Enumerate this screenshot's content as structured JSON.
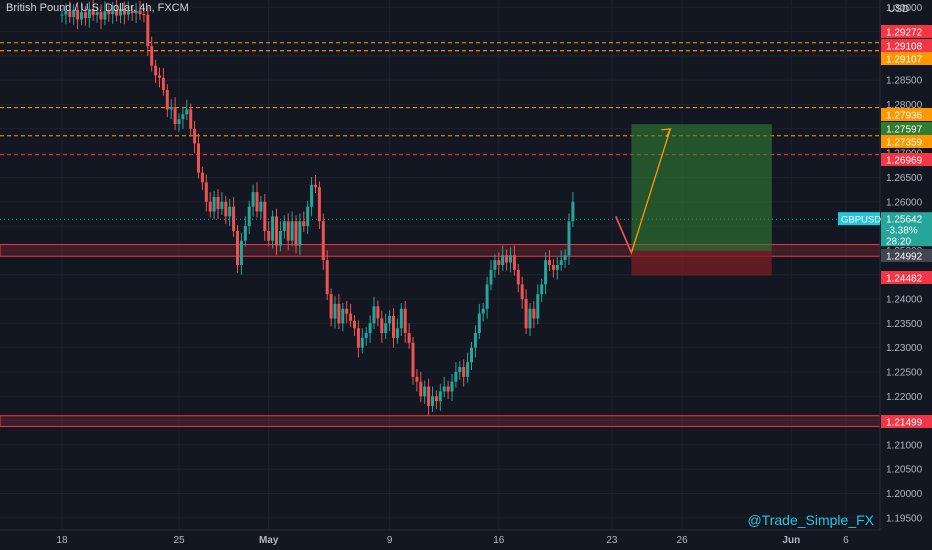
{
  "header": {
    "title": "British Pound / U.S. Dollar, 4h, FXCM",
    "currency": "USD"
  },
  "watermark": "@Trade_Simple_FX",
  "colors": {
    "background": "#131722",
    "up": "#26a69a",
    "down": "#ef5350",
    "orange": "#ff9800",
    "red_line": "#f23645",
    "profit": "#2e7d32",
    "loss": "#7b1d24",
    "cyan": "#26c6da"
  },
  "chart_data": {
    "type": "candlestick",
    "symbol": "GBPUSD",
    "timeframe": "4h",
    "ylim": [
      1.1925,
      1.3015
    ],
    "y_ticks": [
      1.195,
      1.2,
      1.205,
      1.21,
      1.215,
      1.22,
      1.225,
      1.23,
      1.235,
      1.24,
      1.245,
      1.25,
      1.255,
      1.26,
      1.265,
      1.27,
      1.275,
      1.28,
      1.285,
      1.29,
      1.295,
      1.3
    ],
    "y_tick_labels": [
      "1.19500",
      "1.20000",
      "1.20500",
      "1.21000",
      "1.21500",
      "1.22000",
      "1.22500",
      "1.23000",
      "1.23500",
      "1.24000",
      "1.24500",
      "1.25000",
      "1.25500",
      "1.26000",
      "1.26500",
      "1.27000",
      "1.27500",
      "1.28000",
      "1.28500",
      "1.29000",
      "1.29500",
      "1.30000"
    ],
    "x_labels": [
      {
        "label": "18",
        "bar": 0
      },
      {
        "label": "25",
        "bar": 30
      },
      {
        "label": "May",
        "bar": 53
      },
      {
        "label": "9",
        "bar": 84
      },
      {
        "label": "16",
        "bar": 112
      },
      {
        "label": "23",
        "bar": 141
      },
      {
        "label": "26",
        "bar": 159
      },
      {
        "label": "Jun",
        "bar": 187
      },
      {
        "label": "6",
        "bar": 201
      }
    ],
    "ohlc_close": [
      1.2985,
      1.2992,
      1.298,
      1.2995,
      1.2975,
      1.299,
      1.2978,
      1.2996,
      1.2984,
      1.299,
      1.2975,
      1.2992,
      1.2986,
      1.2995,
      1.2983,
      1.2996,
      1.2985,
      1.2992,
      1.2988,
      1.2993,
      1.2986,
      1.2985,
      1.292,
      1.288,
      1.286,
      1.2855,
      1.283,
      1.279,
      1.2795,
      1.276,
      1.277,
      1.278,
      1.279,
      1.275,
      1.272,
      1.266,
      1.264,
      1.26,
      1.258,
      1.261,
      1.2585,
      1.26,
      1.257,
      1.259,
      1.254,
      1.247,
      1.252,
      1.255,
      1.259,
      1.262,
      1.258,
      1.26,
      1.254,
      1.252,
      1.257,
      1.251,
      1.254,
      1.256,
      1.252,
      1.256,
      1.251,
      1.256,
      1.255,
      1.259,
      1.2635,
      1.263,
      1.256,
      1.248,
      1.241,
      1.236,
      1.239,
      1.235,
      1.238,
      1.237,
      1.2355,
      1.234,
      1.23,
      1.232,
      1.233,
      1.235,
      1.2385,
      1.236,
      1.233,
      1.235,
      1.2365,
      1.232,
      1.234,
      1.238,
      1.233,
      1.231,
      1.224,
      1.223,
      1.22,
      1.222,
      1.218,
      1.22,
      1.219,
      1.221,
      1.222,
      1.221,
      1.223,
      1.225,
      1.226,
      1.224,
      1.227,
      1.23,
      1.233,
      1.237,
      1.238,
      1.243,
      1.246,
      1.248,
      1.247,
      1.249,
      1.2475,
      1.249,
      1.246,
      1.243,
      1.24,
      1.234,
      1.238,
      1.236,
      1.241,
      1.243,
      1.248,
      1.247,
      1.246,
      1.247,
      1.248,
      1.249,
      1.256,
      1.26
    ],
    "data_labels": [
      {
        "label": "1.29272",
        "color": "#f23645"
      },
      {
        "label": "1.29108",
        "color": "#f23645"
      },
      {
        "label": "1.29107",
        "color": "#ff9800"
      },
      {
        "label": "1.27936",
        "color": "#ff9800"
      },
      {
        "label": "1.27597",
        "color": "#2e7d32"
      },
      {
        "label": "1.27359",
        "color": "#ff9800"
      },
      {
        "label": "1.26969",
        "color": "#f23645"
      },
      {
        "label": "1.24992",
        "color": "#434651"
      },
      {
        "label": "1.24482",
        "color": "#f23645"
      },
      {
        "label": "1.21499",
        "color": "#f23645"
      }
    ],
    "current_price": {
      "symbol": "GBPUSD",
      "price": "1.25642",
      "change": "-3.38%",
      "countdown": "28:20",
      "value": 1.25642
    },
    "horizontal_lines": [
      {
        "y": 1.29272,
        "style": "dashed",
        "color": "#ff9800"
      },
      {
        "y": 1.29108,
        "style": "dashed",
        "color": "#f23645"
      },
      {
        "y": 1.29107,
        "style": "dashed",
        "color": "#ff9800"
      },
      {
        "y": 1.27936,
        "style": "dashed",
        "color": "#ff9800"
      },
      {
        "y": 1.27359,
        "style": "dashed",
        "color": "#ff9800"
      },
      {
        "y": 1.26969,
        "style": "dashed",
        "color": "#f23645"
      },
      {
        "y": 1.25642,
        "style": "dotted",
        "color": "#26a69a"
      }
    ],
    "zones": [
      {
        "top": 1.2512,
        "bottom": 1.2488,
        "color": "#f23645"
      },
      {
        "top": 1.216,
        "bottom": 1.2138,
        "color": "#f23645"
      }
    ],
    "position": {
      "entry": 1.24992,
      "target": 1.27597,
      "stop": 1.24482,
      "bar_start": 146,
      "bar_end": 182
    },
    "projection": [
      {
        "bar": 142,
        "y": 1.257
      },
      {
        "bar": 146,
        "y": 1.2495
      },
      {
        "bar": 156,
        "y": 1.275
      }
    ]
  }
}
